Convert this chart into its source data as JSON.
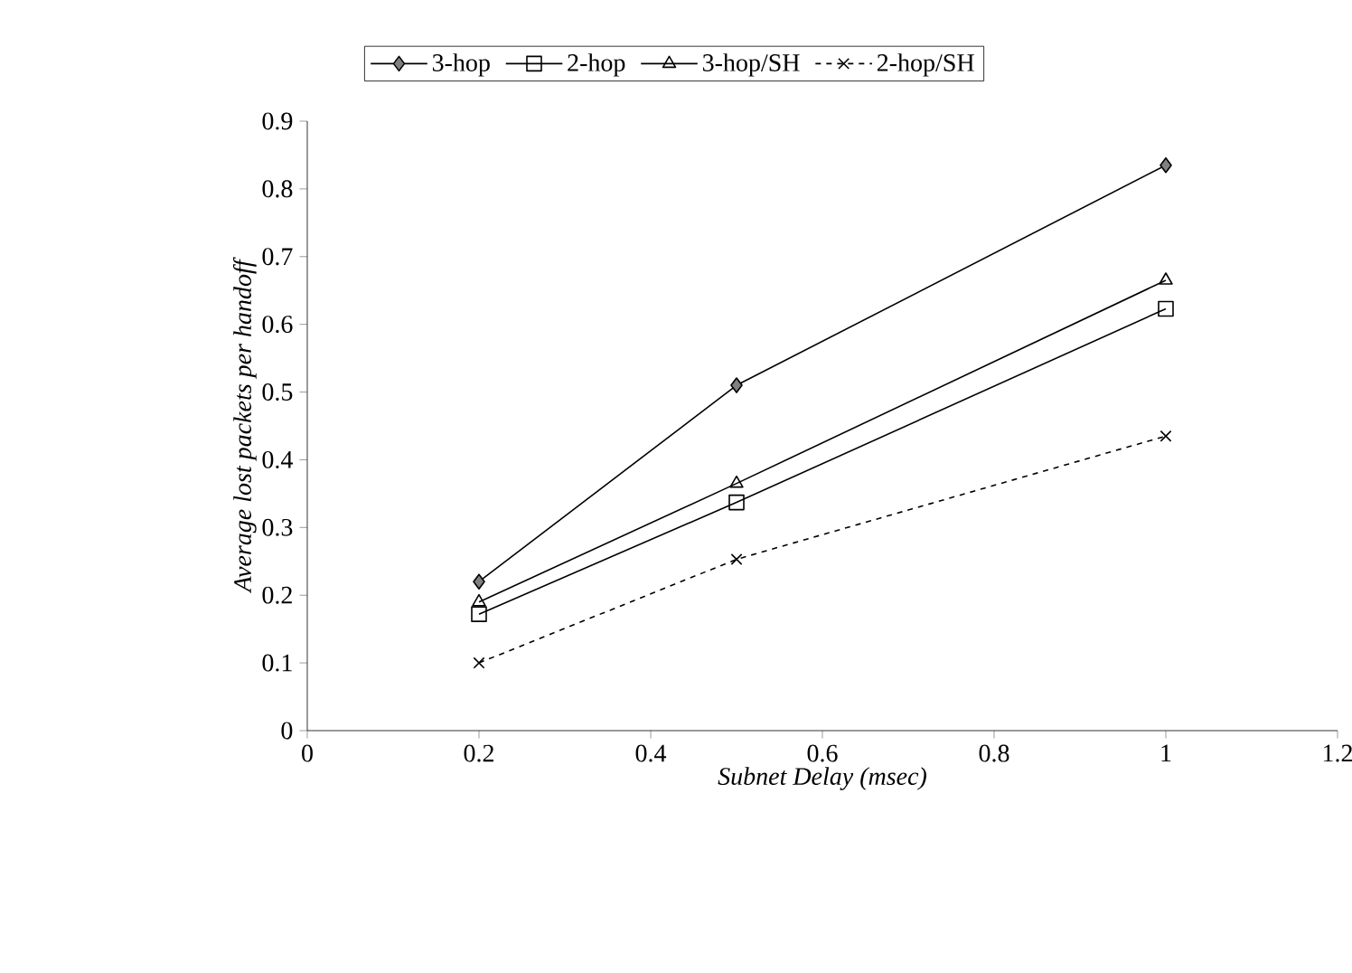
{
  "chart_data": {
    "type": "line",
    "xlabel": "Subnet Delay (msec)",
    "ylabel": "Average lost packets per handoff",
    "x": [
      0.2,
      0.5,
      1
    ],
    "series": [
      {
        "name": "3-hop",
        "color": "#000000",
        "marker": "diamond",
        "line_style": "solid",
        "values": [
          0.22,
          0.51,
          0.835
        ]
      },
      {
        "name": "2-hop",
        "color": "#000000",
        "marker": "square",
        "line_style": "solid",
        "values": [
          0.172,
          0.337,
          0.623
        ]
      },
      {
        "name": "3-hop/SH",
        "color": "#000000",
        "marker": "triangle",
        "line_style": "solid",
        "values": [
          0.19,
          0.365,
          0.665
        ]
      },
      {
        "name": "2-hop/SH",
        "color": "#000000",
        "marker": "cross",
        "line_style": "dashed",
        "values": [
          0.1,
          0.253,
          0.435
        ]
      }
    ],
    "xlim": [
      0,
      1.2
    ],
    "xticks": [
      0,
      0.2,
      0.4,
      0.6,
      0.8,
      1,
      1.2
    ],
    "ylim": [
      0,
      0.9
    ],
    "yticks": [
      0,
      0.1,
      0.2,
      0.3,
      0.4,
      0.5,
      0.6,
      0.7,
      0.8,
      0.9
    ],
    "grid": false,
    "legend": "top"
  }
}
